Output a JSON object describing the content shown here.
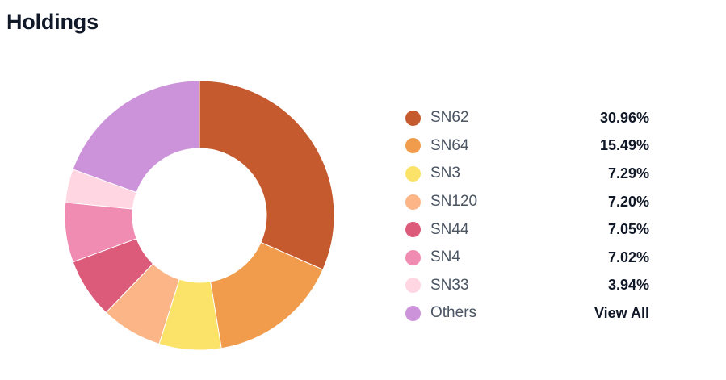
{
  "header": {
    "title": "Holdings"
  },
  "chart_data": {
    "type": "pie",
    "donut": true,
    "title": "Holdings",
    "slices": [
      {
        "label": "SN62",
        "value": 30.96,
        "display": "30.96%",
        "color": "#c55a2f"
      },
      {
        "label": "SN64",
        "value": 15.49,
        "display": "15.49%",
        "color": "#f09c4c"
      },
      {
        "label": "SN3",
        "value": 7.29,
        "display": "7.29%",
        "color": "#fbe36a"
      },
      {
        "label": "SN120",
        "value": 7.2,
        "display": "7.20%",
        "color": "#fbb587"
      },
      {
        "label": "SN44",
        "value": 7.05,
        "display": "7.05%",
        "color": "#dc5b7a"
      },
      {
        "label": "SN4",
        "value": 7.02,
        "display": "7.02%",
        "color": "#f08cb2"
      },
      {
        "label": "SN33",
        "value": 3.94,
        "display": "3.94%",
        "color": "#ffd6e1"
      },
      {
        "label": "Others",
        "value": 19.05,
        "display": "View All",
        "color": "#cc93da"
      }
    ]
  }
}
